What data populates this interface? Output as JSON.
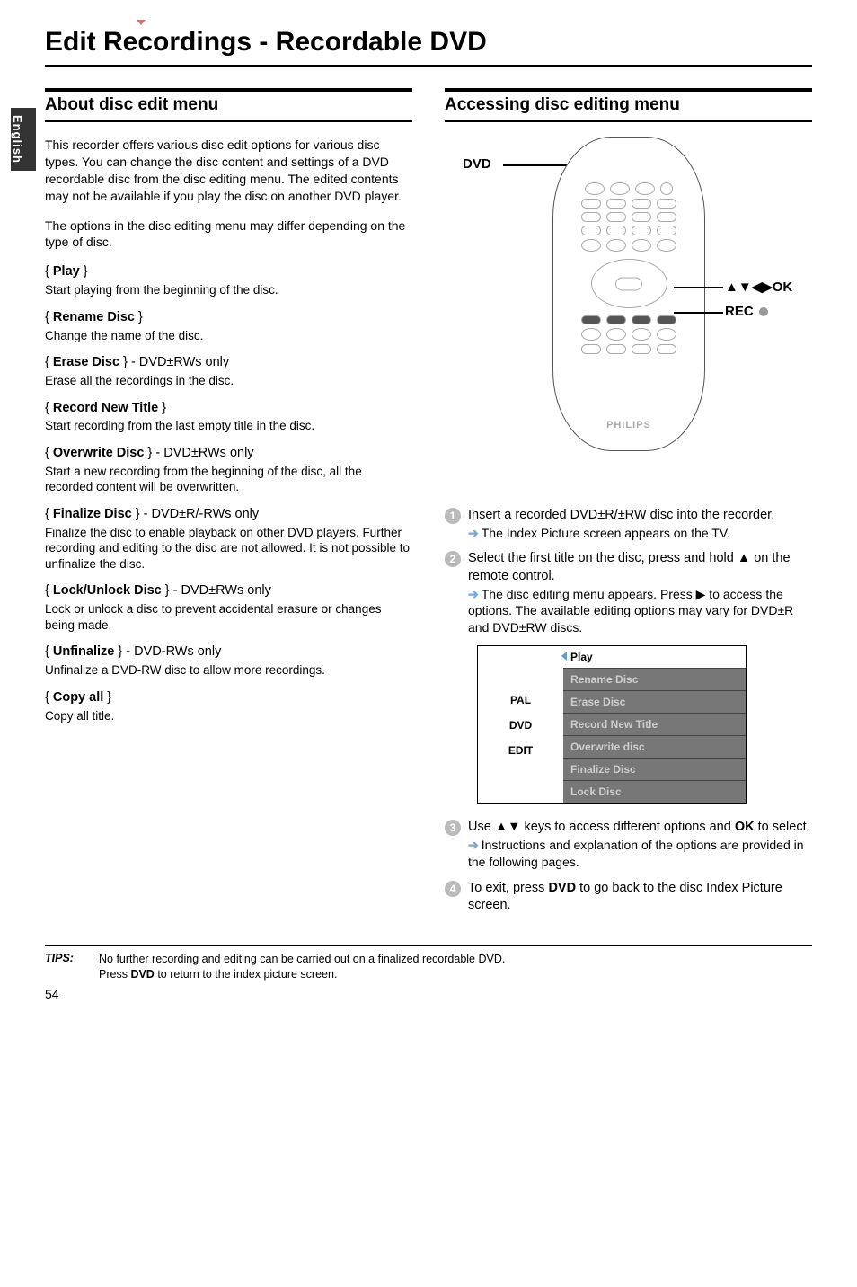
{
  "sidebarLanguage": "English",
  "pageTitle": "Edit Recordings - Recordable DVD",
  "pageNumber": "54",
  "left": {
    "heading": "About disc edit menu",
    "intro1": "This recorder offers various disc edit options for various disc types. You can change the disc content and settings of a DVD recordable disc from the disc editing menu. The edited contents may not be available if you play the disc on another DVD player.",
    "intro2": "The options in the disc editing menu may differ depending on the type of disc.",
    "options": [
      {
        "name": "Play",
        "suffix": "",
        "desc": "Start playing from the beginning of the disc."
      },
      {
        "name": "Rename Disc",
        "suffix": "",
        "desc": "Change the name of the disc."
      },
      {
        "name": "Erase Disc",
        "suffix": " - DVD±RWs only",
        "desc": "Erase all the recordings in the disc."
      },
      {
        "name": "Record New Title",
        "suffix": "",
        "desc": "Start recording from the last empty title in the disc."
      },
      {
        "name": "Overwrite Disc",
        "suffix": " - DVD±RWs only",
        "desc": "Start a new recording from the beginning of the disc, all the recorded content will be overwritten."
      },
      {
        "name": "Finalize Disc",
        "suffix": " - DVD±R/-RWs only",
        "desc": "Finalize the disc to enable playback on other DVD players. Further recording and editing to the disc are not allowed. It is not possible to unfinalize the disc."
      },
      {
        "name": "Lock/Unlock Disc",
        "suffix": " - DVD±RWs only",
        "desc": "Lock or unlock a disc to prevent accidental erasure or changes being made."
      },
      {
        "name": "Unfinalize",
        "suffix": " - DVD-RWs only",
        "desc": "Unfinalize a DVD-RW disc to allow more recordings."
      },
      {
        "name": "Copy all",
        "suffix": "",
        "desc": "Copy all title."
      }
    ]
  },
  "right": {
    "heading": "Accessing disc editing menu",
    "callouts": {
      "dvd": "DVD",
      "navok": "▲▼◀▶OK",
      "rec": "REC"
    },
    "brand": "PHILIPS",
    "steps": {
      "s1a": "Insert a recorded DVD±R/±RW disc into the recorder.",
      "s1b": "The Index Picture screen appears on the TV.",
      "s2a": "Select the first title on the disc, press and hold ▲ on the remote control.",
      "s2b": "The disc editing menu appears. Press ▶ to access the options. The available editing options may vary for DVD±R and DVD±RW discs.",
      "s3a": "Use ▲▼ keys to access different options and ",
      "s3b": " to select.",
      "s3sub": "Instructions and explanation of the options are provided in the following pages.",
      "s4a": "To exit, press ",
      "s4b": " to go back to the disc Index Picture screen.",
      "okLabel": "OK",
      "dvdLabel": "DVD"
    },
    "uiPanel": {
      "leftLabels": [
        "PAL",
        "DVD",
        "EDIT"
      ],
      "rows": [
        {
          "label": "Play",
          "selected": true
        },
        {
          "label": "Rename Disc",
          "selected": false
        },
        {
          "label": "Erase Disc",
          "selected": false
        },
        {
          "label": "Record New Title",
          "selected": false
        },
        {
          "label": "Overwrite disc",
          "selected": false
        },
        {
          "label": "Finalize Disc",
          "selected": false
        },
        {
          "label": "Lock Disc",
          "selected": false
        }
      ]
    }
  },
  "tips": {
    "label": "TIPS:",
    "line1": "No further recording and editing can be carried out on a finalized recordable DVD.",
    "line2a": "Press ",
    "line2b": " to return to the index picture screen.",
    "dvdLabel": "DVD"
  }
}
